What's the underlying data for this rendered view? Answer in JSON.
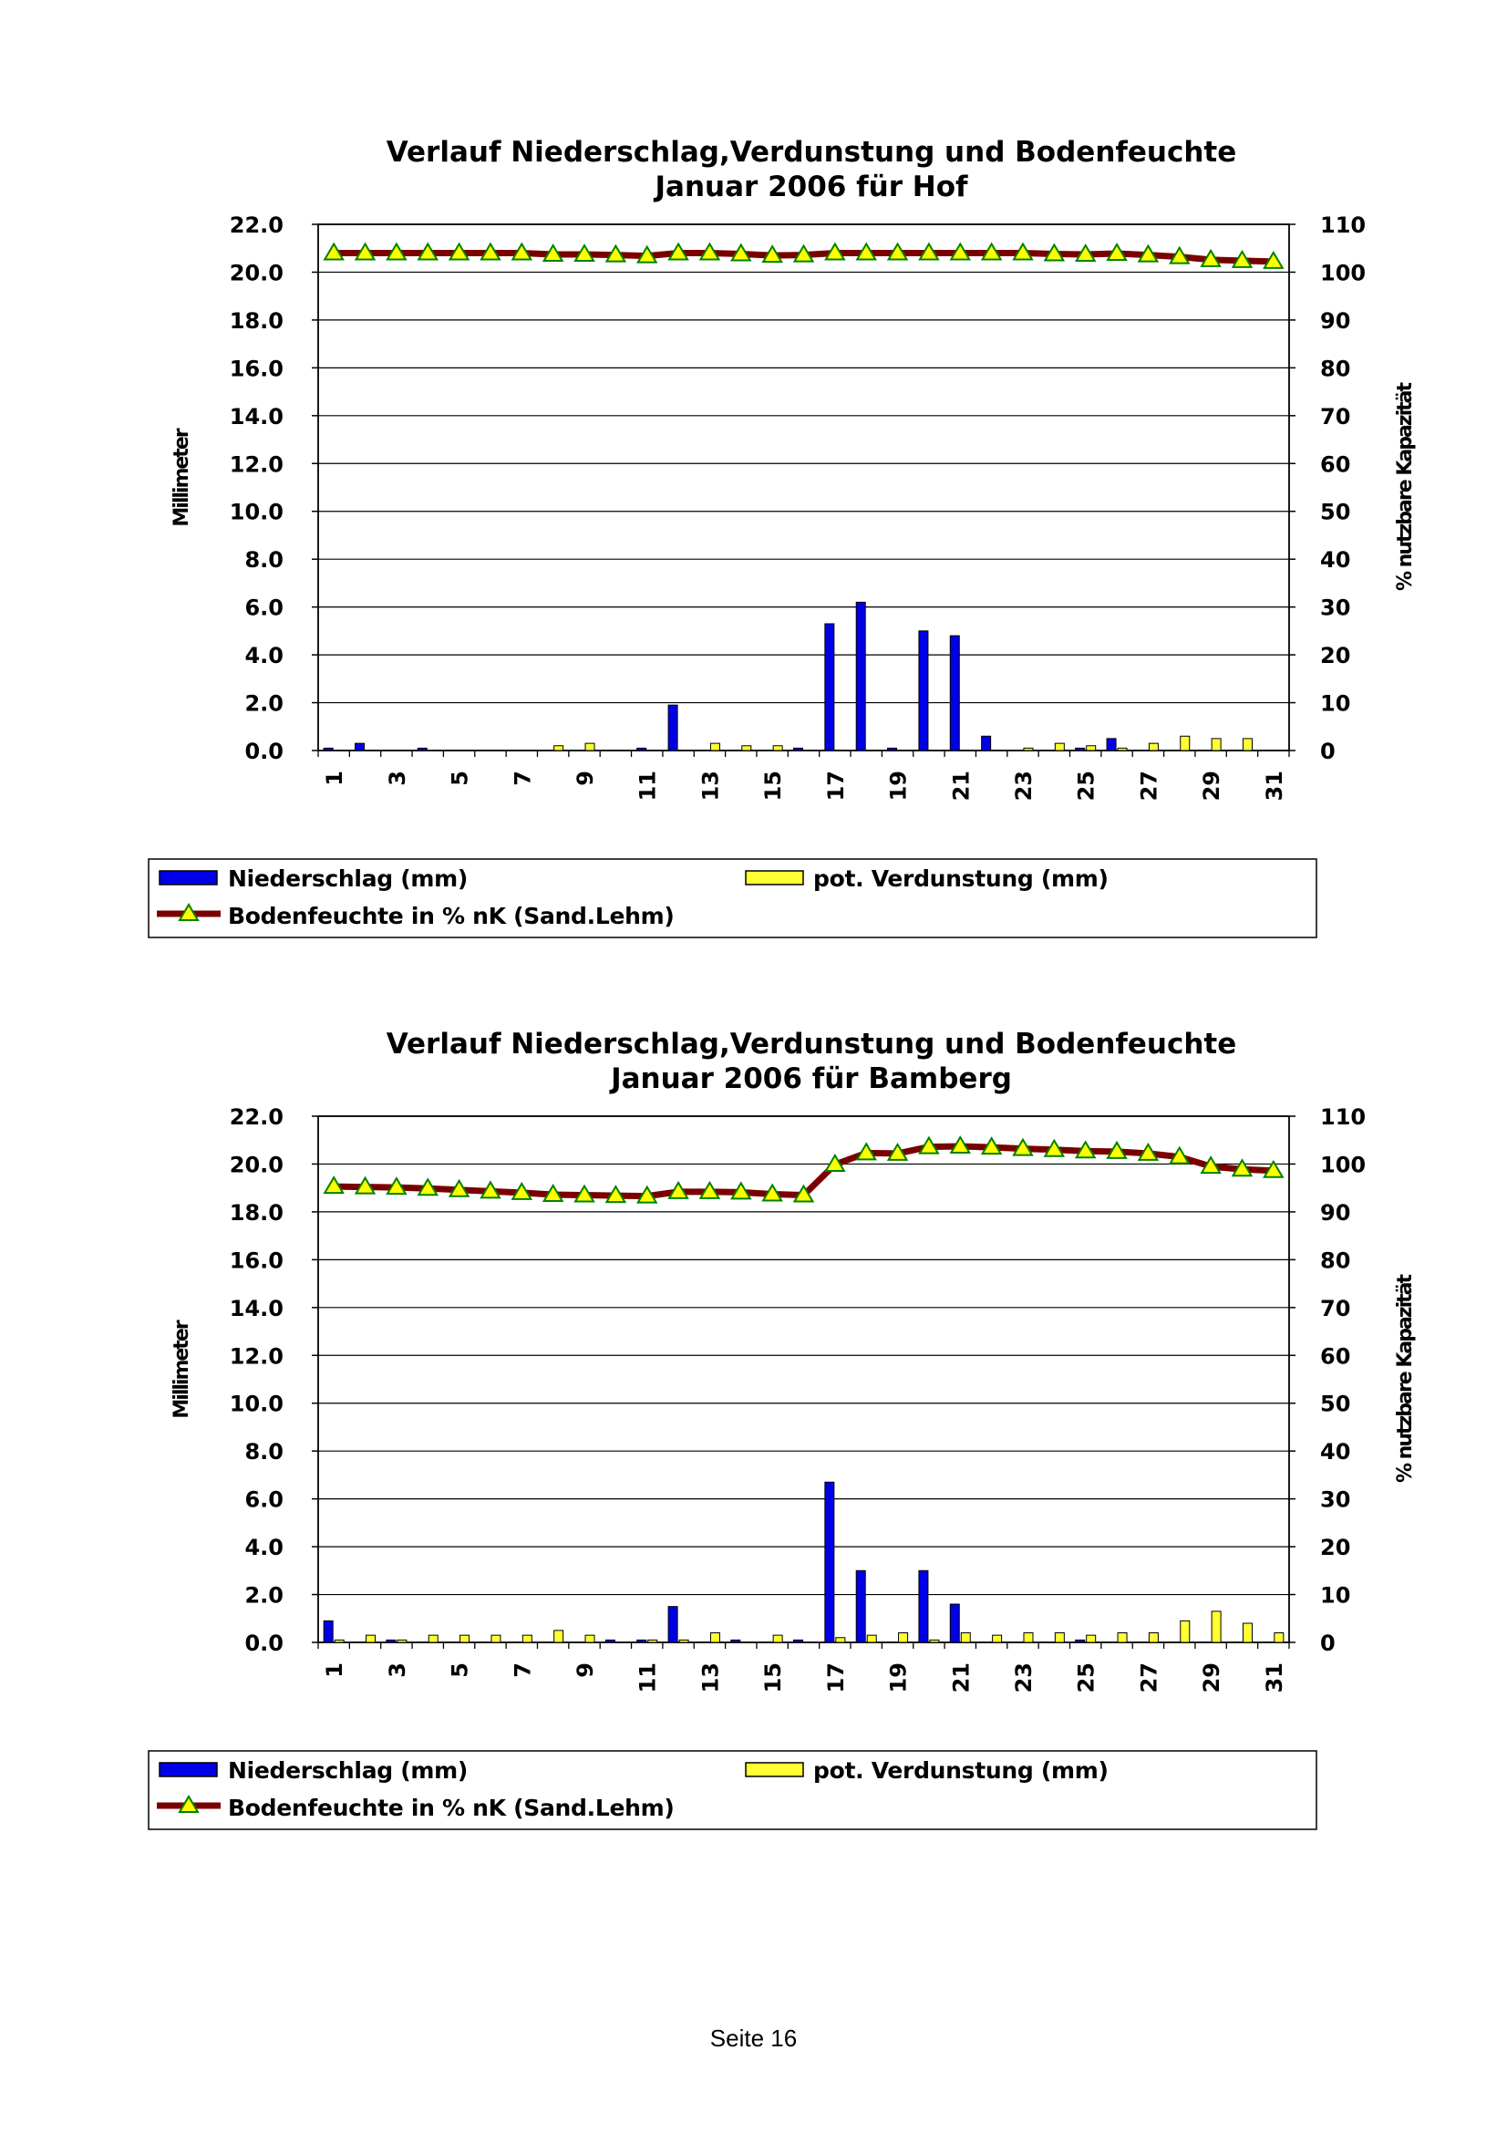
{
  "page": {
    "footer": "Seite 16"
  },
  "colors": {
    "precip": "#0000e6",
    "evap": "#ffff33",
    "soil_line": "#7a0000",
    "soil_marker": "#ffff00",
    "soil_marker_edge": "#008000",
    "grid": "#000000"
  },
  "chart_data": [
    {
      "type": "bar",
      "title": [
        "Verlauf Niederschlag,Verdunstung und Bodenfeuchte",
        "Januar 2006 für Hof"
      ],
      "ylabel": "Millimeter",
      "y2label": "% nutzbare Kapazität",
      "ylim": [
        0,
        22
      ],
      "y2lim": [
        0,
        110
      ],
      "yticks": [
        "0.0",
        "2.0",
        "4.0",
        "6.0",
        "8.0",
        "10.0",
        "12.0",
        "14.0",
        "16.0",
        "18.0",
        "20.0",
        "22.0"
      ],
      "y2ticks": [
        "0",
        "10",
        "20",
        "30",
        "40",
        "50",
        "60",
        "70",
        "80",
        "90",
        "100",
        "110"
      ],
      "xticks": [
        "1",
        "3",
        "5",
        "7",
        "9",
        "11",
        "13",
        "15",
        "17",
        "19",
        "21",
        "23",
        "25",
        "27",
        "29",
        "31"
      ],
      "grid": true,
      "legend": {
        "precip": "Niederschlag (mm)",
        "evap": "pot. Verdunstung (mm)",
        "soil": "Bodenfeuchte in % nK (Sand.Lehm)"
      },
      "categories": [
        1,
        2,
        3,
        4,
        5,
        6,
        7,
        8,
        9,
        10,
        11,
        12,
        13,
        14,
        15,
        16,
        17,
        18,
        19,
        20,
        21,
        22,
        23,
        24,
        25,
        26,
        27,
        28,
        29,
        30,
        31
      ],
      "series": [
        {
          "name": "Niederschlag (mm)",
          "kind": "bar",
          "axis": "left",
          "values": [
            0.1,
            0.3,
            0,
            0.1,
            0,
            0,
            0,
            0,
            0,
            0,
            0.1,
            1.9,
            0,
            0,
            0,
            0.1,
            5.3,
            6.2,
            0.1,
            5.0,
            4.8,
            0.6,
            0,
            0,
            0.1,
            0.5,
            0,
            0,
            0,
            0,
            0
          ]
        },
        {
          "name": "pot. Verdunstung (mm)",
          "kind": "bar",
          "axis": "left",
          "values": [
            0,
            0,
            0,
            0,
            0,
            0,
            0,
            0.2,
            0.3,
            0,
            0,
            0,
            0.3,
            0.2,
            0.2,
            0,
            0,
            0,
            0,
            0,
            0,
            0,
            0.1,
            0.3,
            0.2,
            0.1,
            0.3,
            0.6,
            0.5,
            0.5,
            0
          ]
        },
        {
          "name": "Bodenfeuchte in % nK (Sand.Lehm)",
          "kind": "line",
          "axis": "right",
          "values": [
            104,
            104,
            104,
            104,
            104,
            104,
            104,
            103.7,
            103.7,
            103.6,
            103.4,
            104,
            104,
            103.8,
            103.5,
            103.6,
            104,
            104,
            104,
            104,
            104,
            104,
            104,
            103.8,
            103.7,
            103.9,
            103.6,
            103.2,
            102.6,
            102.4,
            102.2
          ]
        }
      ]
    },
    {
      "type": "bar",
      "title": [
        "Verlauf Niederschlag,Verdunstung und Bodenfeuchte",
        "Januar 2006 für Bamberg"
      ],
      "ylabel": "Millimeter",
      "y2label": "% nutzbare Kapazität",
      "ylim": [
        0,
        22
      ],
      "y2lim": [
        0,
        110
      ],
      "yticks": [
        "0.0",
        "2.0",
        "4.0",
        "6.0",
        "8.0",
        "10.0",
        "12.0",
        "14.0",
        "16.0",
        "18.0",
        "20.0",
        "22.0"
      ],
      "y2ticks": [
        "0",
        "10",
        "20",
        "30",
        "40",
        "50",
        "60",
        "70",
        "80",
        "90",
        "100",
        "110"
      ],
      "xticks": [
        "1",
        "3",
        "5",
        "7",
        "9",
        "11",
        "13",
        "15",
        "17",
        "19",
        "21",
        "23",
        "25",
        "27",
        "29",
        "31"
      ],
      "grid": true,
      "legend": {
        "precip": "Niederschlag (mm)",
        "evap": "pot. Verdunstung (mm)",
        "soil": "Bodenfeuchte in % nK (Sand.Lehm)"
      },
      "categories": [
        1,
        2,
        3,
        4,
        5,
        6,
        7,
        8,
        9,
        10,
        11,
        12,
        13,
        14,
        15,
        16,
        17,
        18,
        19,
        20,
        21,
        22,
        23,
        24,
        25,
        26,
        27,
        28,
        29,
        30,
        31
      ],
      "series": [
        {
          "name": "Niederschlag (mm)",
          "kind": "bar",
          "axis": "left",
          "values": [
            0.9,
            0,
            0.1,
            0,
            0,
            0,
            0,
            0,
            0,
            0.1,
            0.1,
            1.5,
            0,
            0.1,
            0,
            0.1,
            6.7,
            3.0,
            0,
            3.0,
            1.6,
            0,
            0,
            0,
            0.1,
            0,
            0,
            0,
            0,
            0,
            0
          ]
        },
        {
          "name": "pot. Verdunstung (mm)",
          "kind": "bar",
          "axis": "left",
          "values": [
            0.1,
            0.3,
            0.1,
            0.3,
            0.3,
            0.3,
            0.3,
            0.5,
            0.3,
            0,
            0.1,
            0.1,
            0.4,
            0,
            0.3,
            0,
            0.2,
            0.3,
            0.4,
            0.1,
            0.4,
            0.3,
            0.4,
            0.4,
            0.3,
            0.4,
            0.4,
            0.9,
            1.3,
            0.8,
            0.4
          ]
        },
        {
          "name": "Bodenfeuchte in % nK (Sand.Lehm)",
          "kind": "line",
          "axis": "right",
          "values": [
            95.3,
            95.2,
            95.1,
            94.9,
            94.6,
            94.3,
            94.0,
            93.6,
            93.5,
            93.4,
            93.3,
            94.2,
            94.2,
            94.1,
            93.7,
            93.5,
            99.9,
            102.3,
            102.2,
            103.6,
            103.7,
            103.5,
            103.2,
            103.0,
            102.7,
            102.6,
            102.2,
            101.5,
            99.5,
            98.9,
            98.6
          ]
        }
      ]
    }
  ]
}
